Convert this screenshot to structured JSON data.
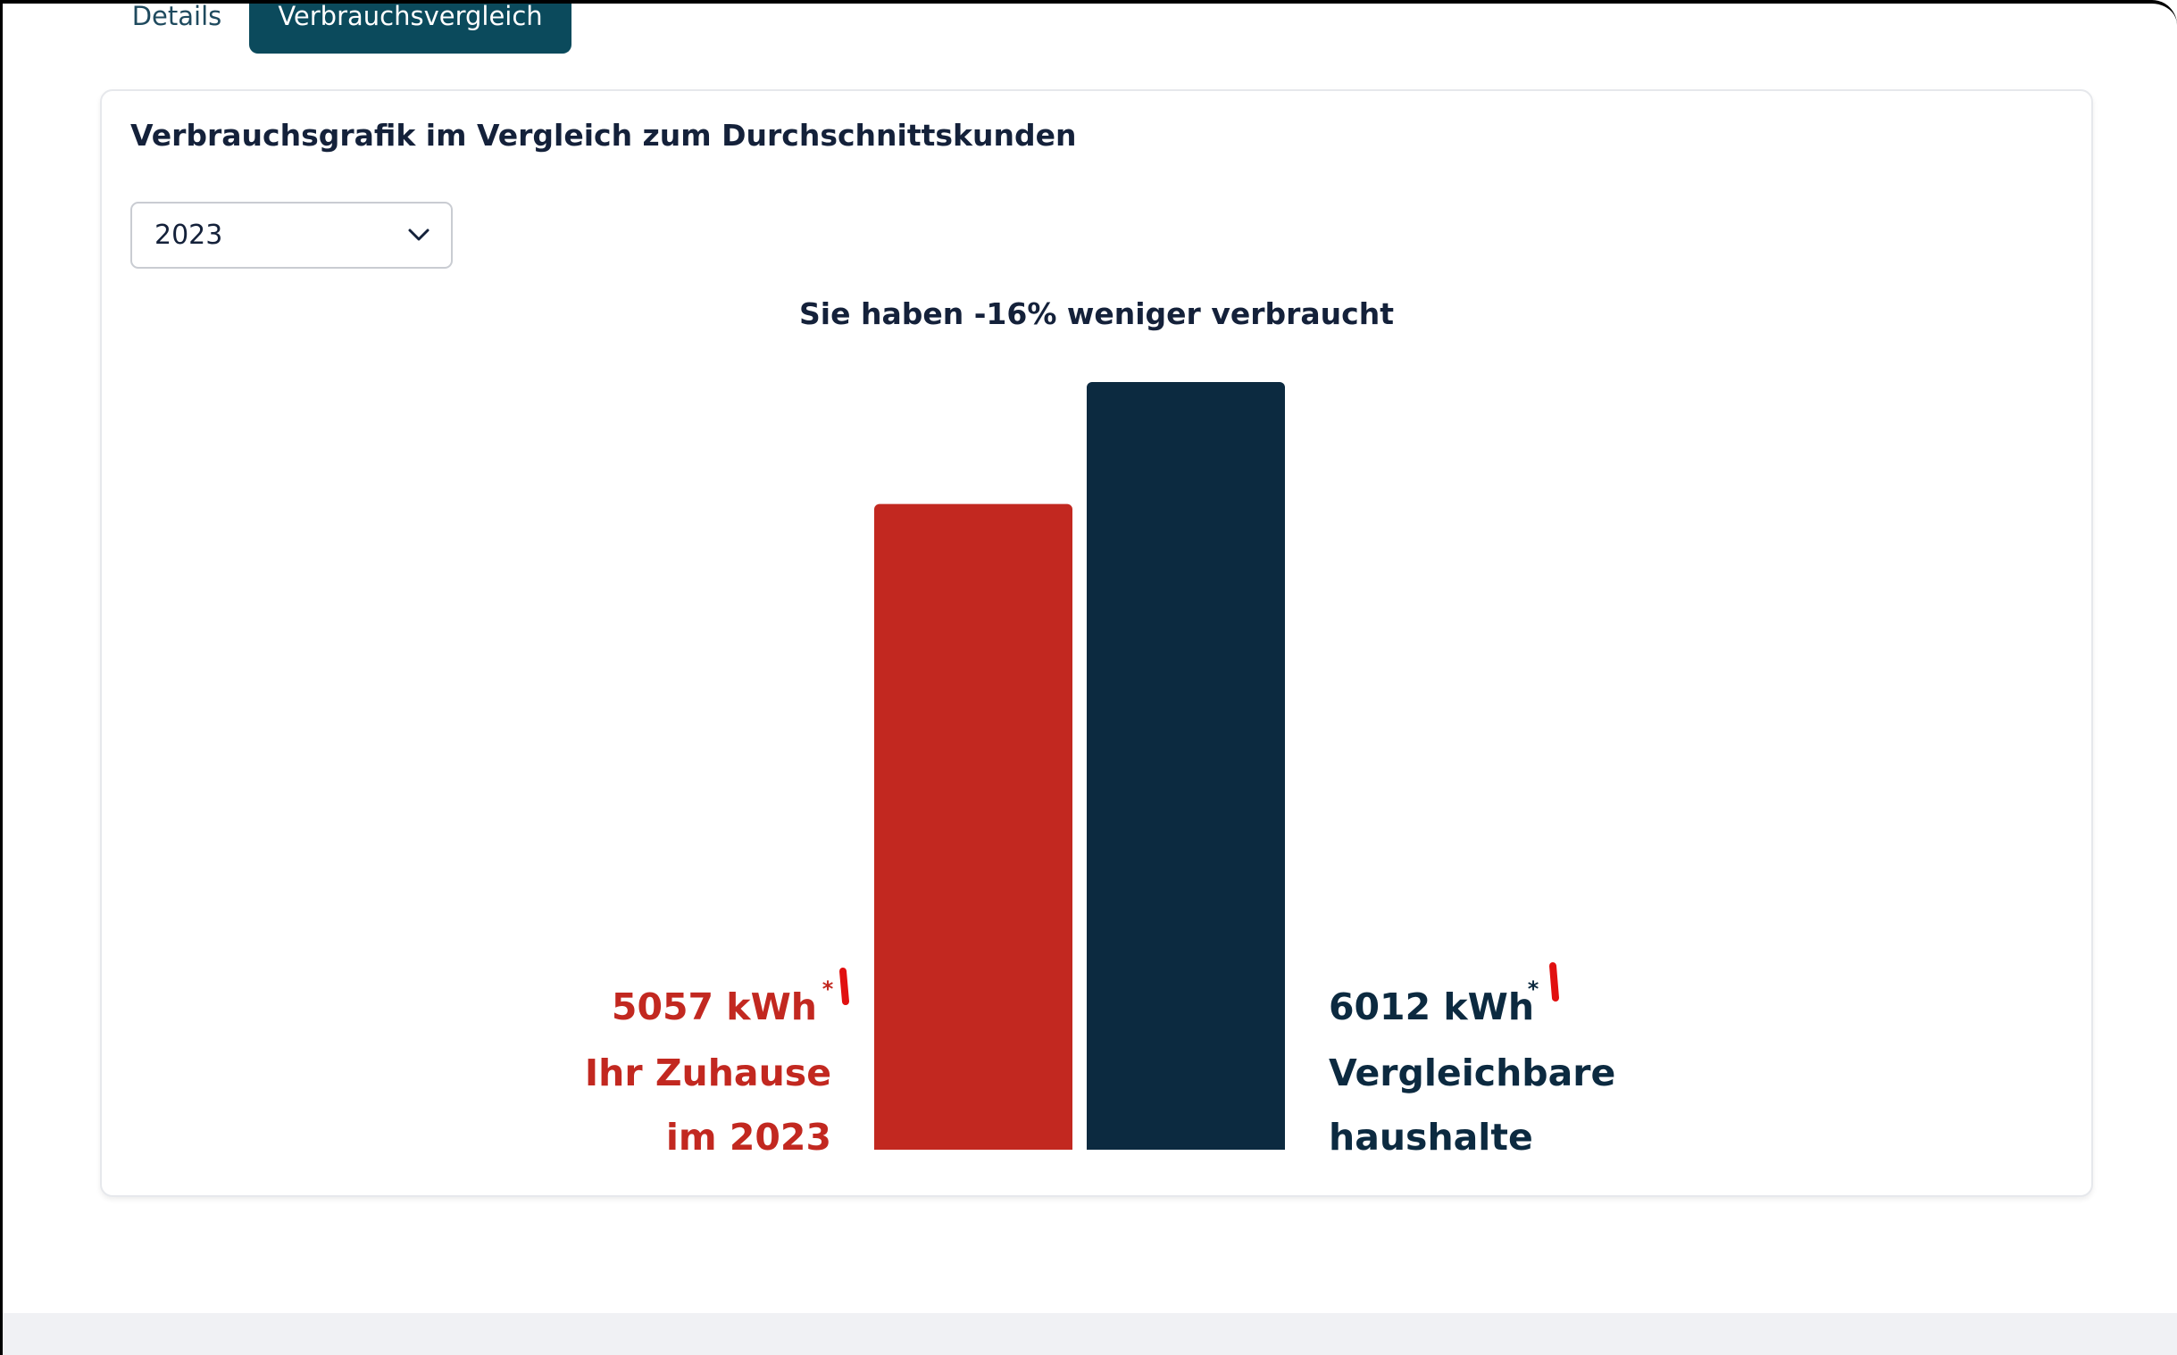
{
  "tabs": {
    "details_label": "Details",
    "active_label": "Verbrauchsvergleich"
  },
  "card": {
    "title": "Verbrauchsgrafik im Vergleich zum Durchschnittskunden"
  },
  "year_select": {
    "value": "2023",
    "icon": "chevron-down-icon"
  },
  "colors": {
    "user": "#c22820",
    "average": "#0c2a40",
    "tab_active": "#0b4a5c",
    "annotation": "#e11010"
  },
  "chart_data": {
    "type": "bar",
    "title": "Sie haben -16% weniger verbraucht",
    "unit": "kWh",
    "categories": [
      "Ihr Zuhause im 2023",
      "Vergleichbare haushalte"
    ],
    "values": [
      5057,
      6012
    ],
    "labels": [
      {
        "value_text": "5057 kWh",
        "asterisk": "*",
        "line1": "Ihr Zuhause",
        "line2": "im 2023"
      },
      {
        "value_text": "6012 kWh",
        "asterisk": "*",
        "line1": "Vergleichbare",
        "line2": "haushalte"
      }
    ]
  }
}
